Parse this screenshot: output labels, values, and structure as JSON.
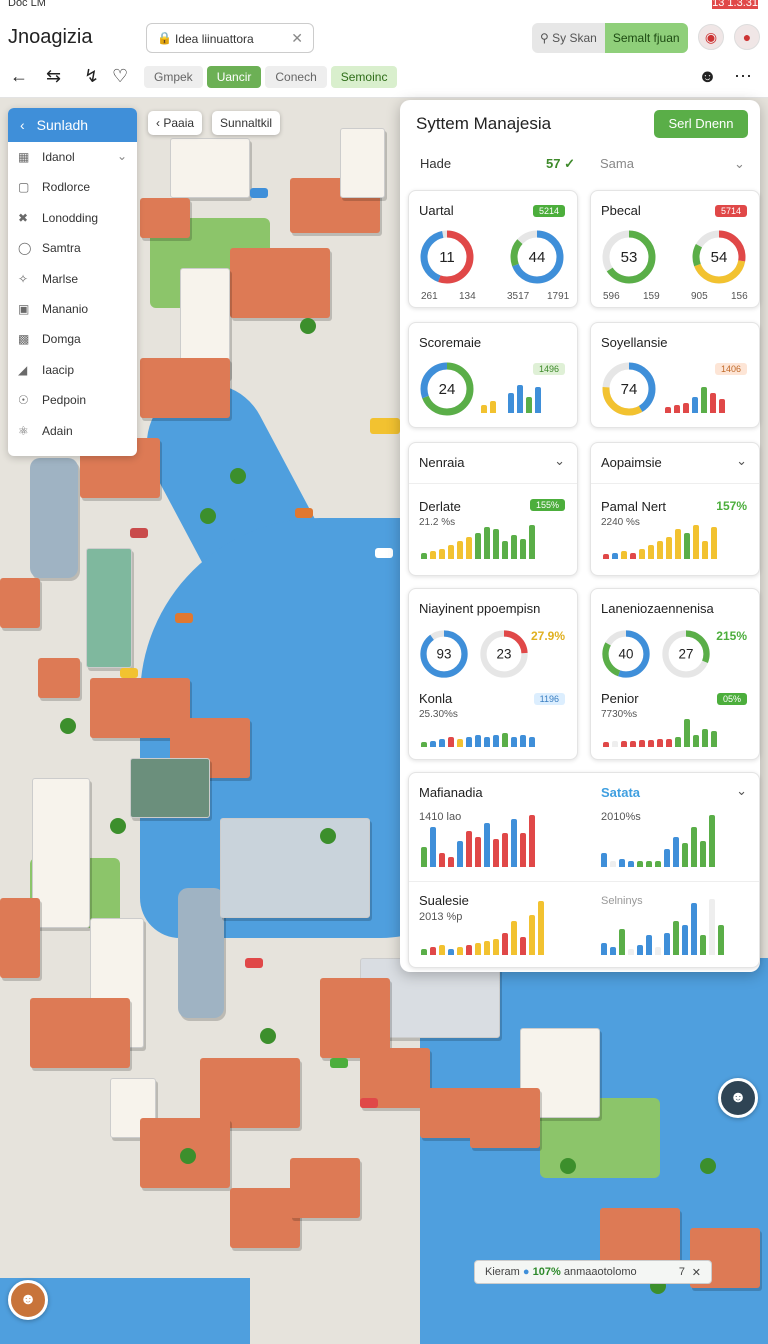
{
  "status": {
    "left": "Doc  LM",
    "right": "13 1.3.31"
  },
  "app": {
    "name": "Jnoagizia",
    "url": "Idea liinuattora"
  },
  "header_seg": {
    "a": "Sy Skan",
    "b": "Semalt fjuan"
  },
  "tabs": [
    "Gmpek",
    "Uancir",
    "Conech",
    "Semoinc"
  ],
  "sidebar": {
    "title": "Sunladh",
    "items": [
      {
        "label": "Idanol",
        "icon": "grid-icon"
      },
      {
        "label": "Rodlorce",
        "icon": "square-icon"
      },
      {
        "label": "Lonodding",
        "icon": "cross-icon"
      },
      {
        "label": "Samtra",
        "icon": "circle-icon"
      },
      {
        "label": "Marlse",
        "icon": "puzzle-icon"
      },
      {
        "label": "Mananio",
        "icon": "monitor-icon"
      },
      {
        "label": "Domga",
        "icon": "grid-icon"
      },
      {
        "label": "Iaacip",
        "icon": "chart-icon"
      },
      {
        "label": "Pedpoin",
        "icon": "power-icon"
      },
      {
        "label": "Adain",
        "icon": "atom-icon"
      }
    ]
  },
  "chips": {
    "back": "Paaia",
    "second": "Sunnaltkil"
  },
  "panel": {
    "title": "Syttem Manajesia",
    "button": "Serl Dnenn",
    "filter1": "Hade",
    "filter1_val": "57",
    "filter2": "Sama"
  },
  "cards": {
    "c1": {
      "title": "Uartal",
      "badge": "5214",
      "r1": "11",
      "r2": "44",
      "s": [
        "261",
        "134",
        "3517",
        "1791"
      ]
    },
    "c2": {
      "title": "Pbecal",
      "badge": "5714",
      "r1": "53",
      "r2": "54",
      "s": [
        "596",
        "159",
        "905",
        "156"
      ]
    },
    "c3": {
      "title": "Scoremaie",
      "badge": "1496",
      "r1": "24"
    },
    "c4": {
      "title": "Soyellansie",
      "badge": "1406",
      "r1": "74"
    },
    "c5": {
      "title": "Nenraia"
    },
    "c6": {
      "title": "Aopaimsie"
    },
    "c7": {
      "title": "Derlate",
      "badge": "155%",
      "sub": "21.2 %s"
    },
    "c8": {
      "title": "Pamal Nert",
      "pct": "157%",
      "sub": "2240 %s"
    },
    "c9": {
      "title": "Niayinent ppoempisn",
      "pct": "27.9%",
      "r1": "93",
      "r2": "23",
      "t2": "Konla",
      "badge": "1196",
      "sub": "25.30%s"
    },
    "c10": {
      "title": "Laneniozaennenisa",
      "pct": "215%",
      "r1": "40",
      "r2": "27",
      "t2": "Penior",
      "badge": "05%",
      "sub": "7730%s"
    },
    "c11": {
      "title": "Mafianadia",
      "sub": "1410 lao",
      "right": "Satata",
      "rsub": "2010%s",
      "t2": "Sualesie",
      "sub2": "2013 %p",
      "r2": "Selninys"
    }
  },
  "toast": {
    "text": "Kieram",
    "pct": "107%",
    "rest": "anmaaotolomo",
    "num": "7"
  },
  "colors": {
    "green": "#5aae48",
    "blue": "#3f8fd9",
    "red": "#e04848",
    "yellow": "#f2c230"
  }
}
